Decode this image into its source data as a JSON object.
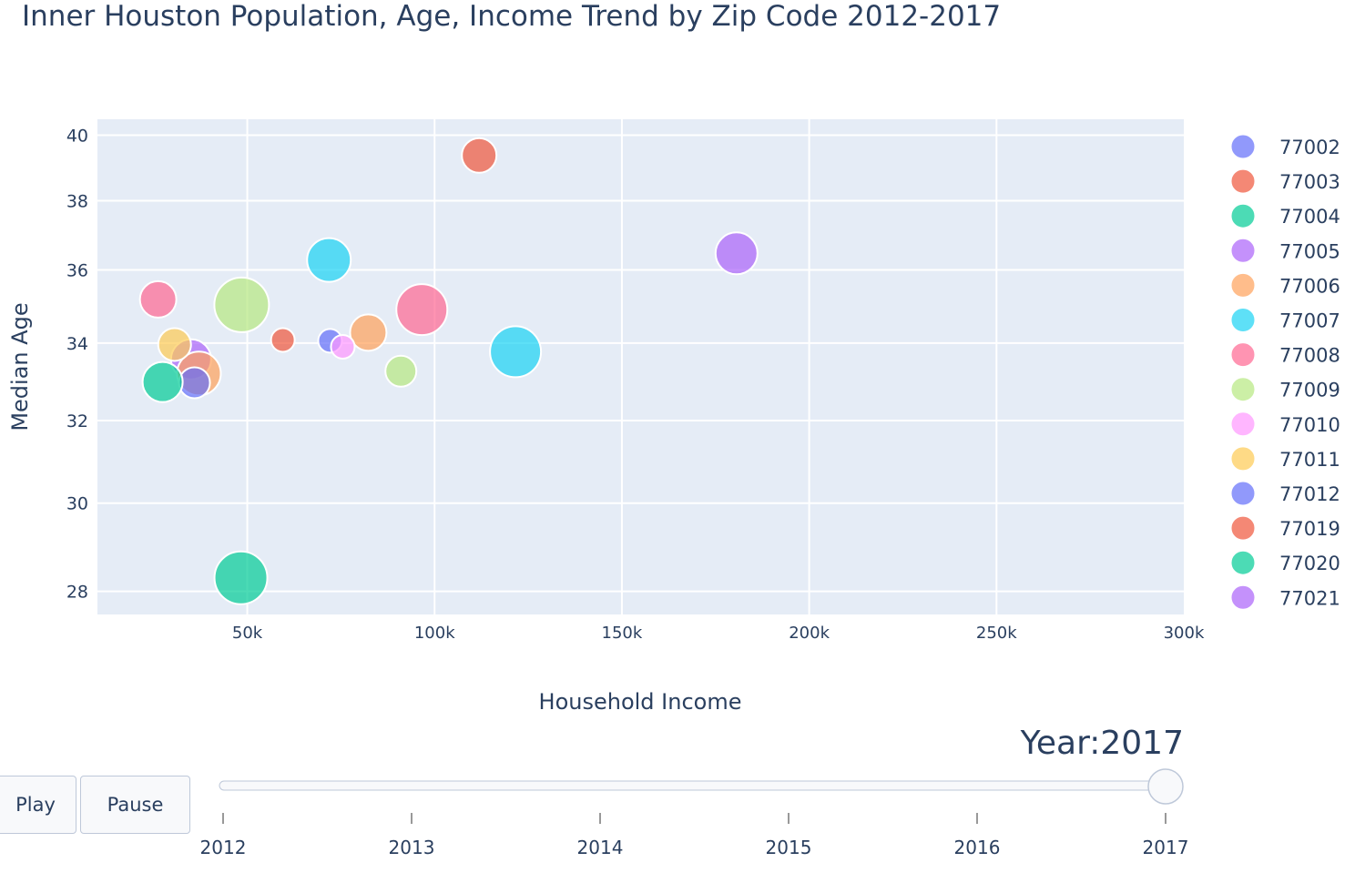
{
  "chart_data": {
    "type": "scatter",
    "title": "Inner Houston Population, Age, Income Trend by Zip Code 2012-2017",
    "xlabel": "Household Income",
    "ylabel": "Median Age",
    "xlim": [
      10000,
      300000
    ],
    "ylim": [
      27.5,
      40.5
    ],
    "yscale": "log",
    "grid": true,
    "legend_placement": "right",
    "x_ticks": [
      {
        "v": 50000,
        "label": "50k"
      },
      {
        "v": 100000,
        "label": "100k"
      },
      {
        "v": 150000,
        "label": "150k"
      },
      {
        "v": 200000,
        "label": "200k"
      },
      {
        "v": 250000,
        "label": "250k"
      },
      {
        "v": 300000,
        "label": "300k"
      }
    ],
    "y_ticks": [
      {
        "v": 28,
        "label": "28"
      },
      {
        "v": 30,
        "label": "30"
      },
      {
        "v": 32,
        "label": "32"
      },
      {
        "v": 34,
        "label": "34"
      },
      {
        "v": 36,
        "label": "36"
      },
      {
        "v": 38,
        "label": "38"
      },
      {
        "v": 40,
        "label": "40"
      }
    ],
    "series": [
      {
        "name": "77002",
        "color": "#636efa",
        "points": [
          {
            "x": 72100,
            "y": 34.06,
            "size": 13
          }
        ]
      },
      {
        "name": "77003",
        "color": "#EF553B",
        "points": [
          {
            "x": 111900,
            "y": 39.37,
            "size": 19
          }
        ]
      },
      {
        "name": "77004",
        "color": "#00cc96",
        "points": [
          {
            "x": 48300,
            "y": 28.3,
            "size": 29
          }
        ]
      },
      {
        "name": "77005",
        "color": "#ab63fa",
        "points": [
          {
            "x": 35000,
            "y": 33.57,
            "size": 22
          }
        ]
      },
      {
        "name": "77006",
        "color": "#FFA15A",
        "points": [
          {
            "x": 82300,
            "y": 34.28,
            "size": 20
          },
          {
            "x": 37100,
            "y": 33.2,
            "size": 24
          }
        ]
      },
      {
        "name": "77007",
        "color": "#19d3f3",
        "points": [
          {
            "x": 71800,
            "y": 36.28,
            "size": 24
          },
          {
            "x": 121600,
            "y": 33.77,
            "size": 28
          }
        ]
      },
      {
        "name": "77008",
        "color": "#FF6692",
        "points": [
          {
            "x": 26200,
            "y": 35.18,
            "size": 20
          },
          {
            "x": 96600,
            "y": 34.9,
            "size": 28
          }
        ]
      },
      {
        "name": "77009",
        "color": "#B6E880",
        "points": [
          {
            "x": 48500,
            "y": 35.03,
            "size": 30
          },
          {
            "x": 91000,
            "y": 33.26,
            "size": 17
          }
        ]
      },
      {
        "name": "77010",
        "color": "#FF97FF",
        "points": [
          {
            "x": 75500,
            "y": 33.9,
            "size": 13
          }
        ]
      },
      {
        "name": "77011",
        "color": "#FECB52",
        "points": [
          {
            "x": 30600,
            "y": 33.96,
            "size": 18
          }
        ]
      },
      {
        "name": "77012",
        "color": "#636efa",
        "points": [
          {
            "x": 35900,
            "y": 32.96,
            "size": 17
          }
        ]
      },
      {
        "name": "77019",
        "color": "#EF553B",
        "points": [
          {
            "x": 59500,
            "y": 34.08,
            "size": 13
          }
        ]
      },
      {
        "name": "77020",
        "color": "#00cc96",
        "points": [
          {
            "x": 27400,
            "y": 32.98,
            "size": 22
          }
        ]
      },
      {
        "name": "77021",
        "color": "#ab63fa",
        "points": [
          {
            "x": 180600,
            "y": 36.47,
            "size": 23
          }
        ]
      }
    ]
  },
  "animation": {
    "play_label": "Play",
    "pause_label": "Pause",
    "current_value_prefix": "Year:",
    "current_value": "2017",
    "steps": [
      "2012",
      "2013",
      "2014",
      "2015",
      "2016",
      "2017"
    ],
    "active_step": "2017"
  }
}
